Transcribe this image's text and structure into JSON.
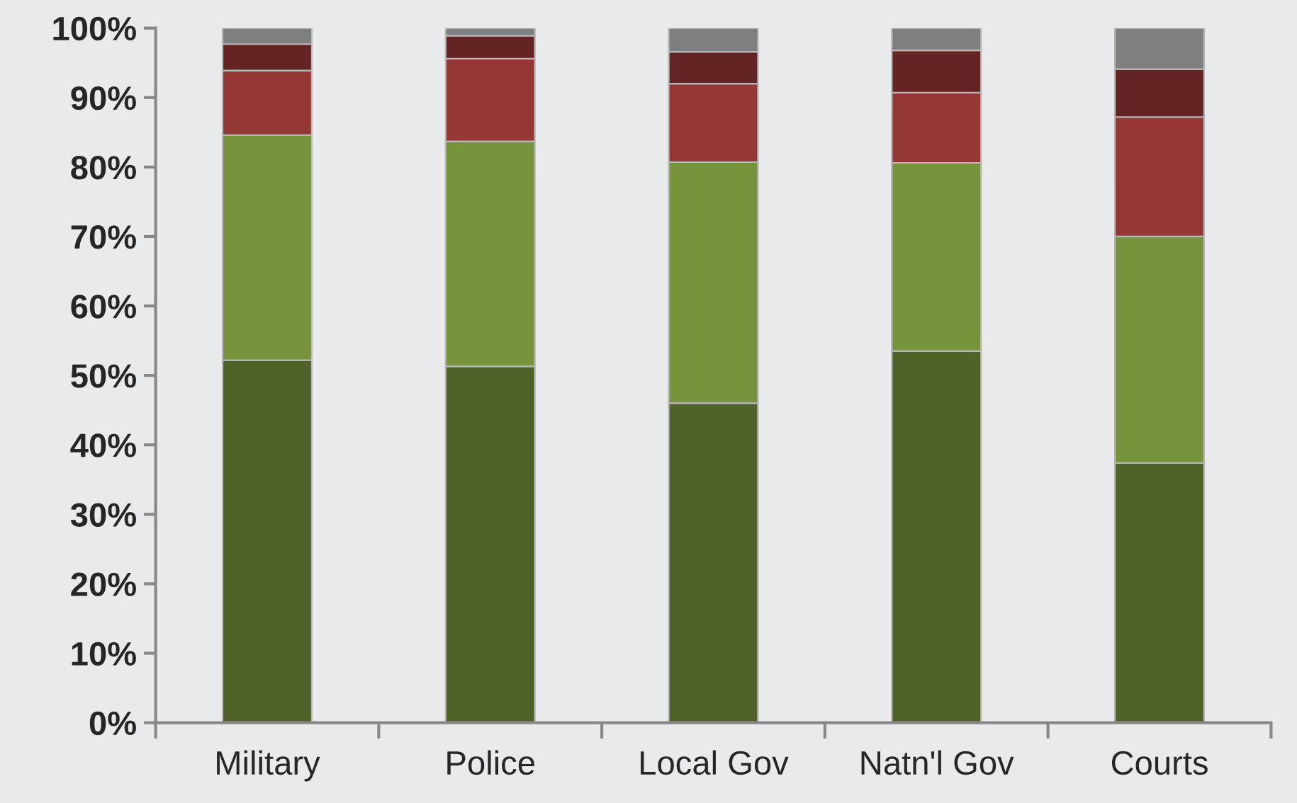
{
  "chart_data": {
    "type": "bar",
    "stacked": true,
    "categories": [
      "Military",
      "Police",
      "Local Gov",
      "Natn'l Gov",
      "Courts"
    ],
    "series": [
      {
        "color": "#4f6228",
        "values": [
          52.2,
          51.3,
          46.0,
          53.5,
          37.4
        ]
      },
      {
        "color": "#77933c",
        "values": [
          32.4,
          32.4,
          34.7,
          27.1,
          32.6
        ]
      },
      {
        "color": "#953735",
        "values": [
          9.3,
          11.9,
          11.3,
          10.1,
          17.2
        ]
      },
      {
        "color": "#632423",
        "values": [
          3.8,
          3.3,
          4.6,
          6.1,
          6.9
        ]
      },
      {
        "color": "#7f7f7f",
        "values": [
          2.3,
          1.1,
          3.4,
          3.2,
          5.9
        ]
      }
    ],
    "ylim": [
      0,
      100
    ],
    "yticks": [
      {
        "value": 0,
        "label": "0%"
      },
      {
        "value": 10,
        "label": "10%"
      },
      {
        "value": 20,
        "label": "20%"
      },
      {
        "value": 30,
        "label": "30%"
      },
      {
        "value": 40,
        "label": "40%"
      },
      {
        "value": 50,
        "label": "50%"
      },
      {
        "value": 60,
        "label": "60%"
      },
      {
        "value": 70,
        "label": "70%"
      },
      {
        "value": 80,
        "label": "80%"
      },
      {
        "value": 90,
        "label": "90%"
      },
      {
        "value": 100,
        "label": "100%"
      }
    ],
    "grid": false
  }
}
